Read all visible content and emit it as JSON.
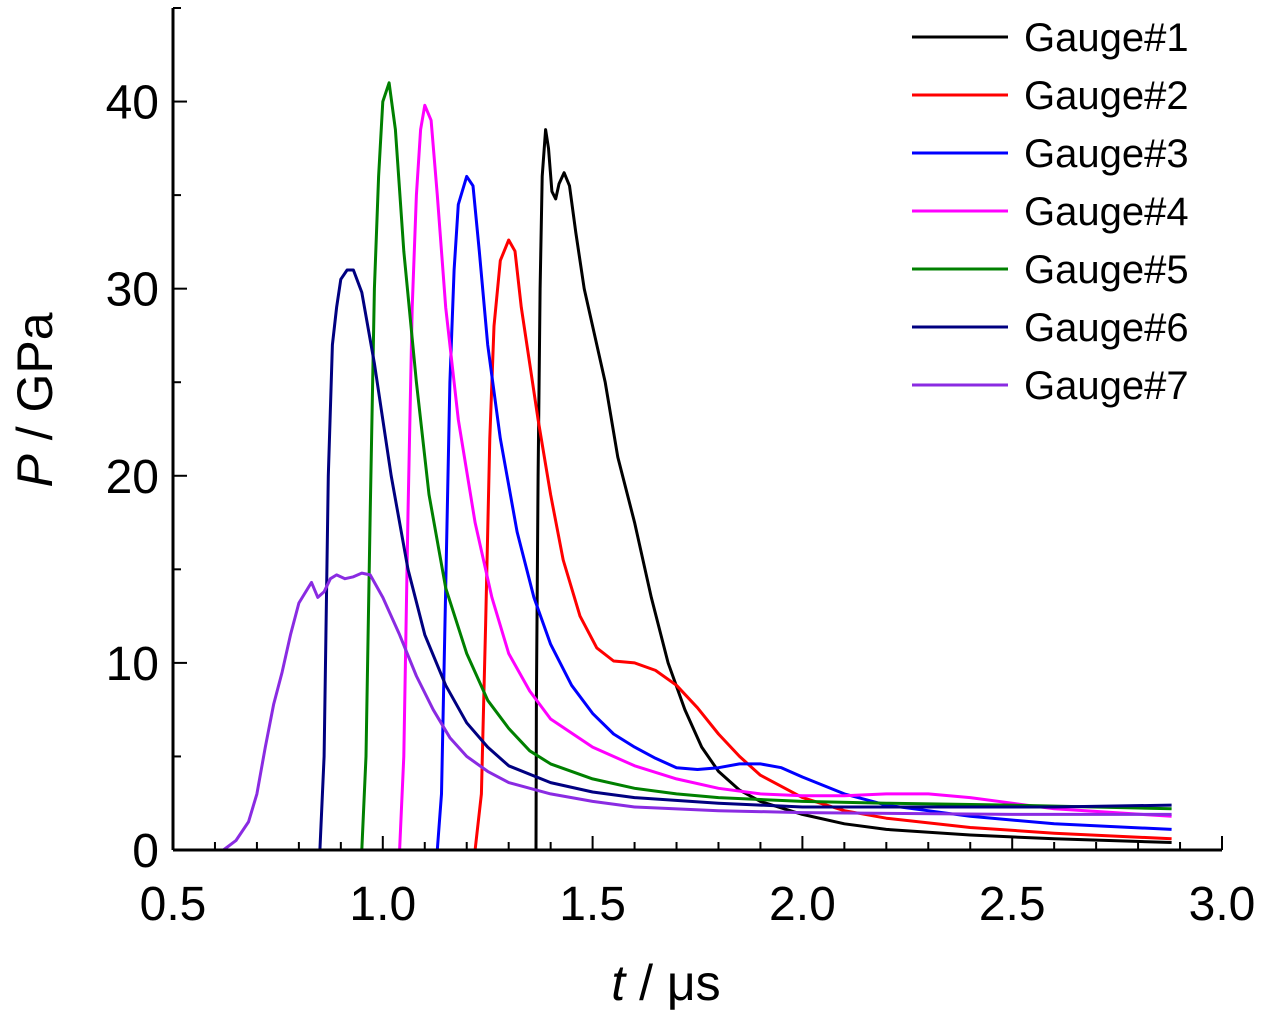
{
  "chart_data": {
    "type": "line",
    "xlabel_symbol": "t",
    "xlabel_unit": " / μs",
    "ylabel_symbol": "P",
    "ylabel_unit": " / GPa",
    "xlim": [
      0.5,
      3.0
    ],
    "ylim": [
      0,
      45
    ],
    "xticks": [
      0.5,
      1.0,
      1.5,
      2.0,
      2.5,
      3.0
    ],
    "xtick_labels": [
      "0.5",
      "1.0",
      "1.5",
      "2.0",
      "2.5",
      "3.0"
    ],
    "yticks": [
      0,
      10,
      20,
      30,
      40
    ],
    "ytick_labels": [
      "0",
      "10",
      "20",
      "30",
      "40"
    ],
    "grid": false,
    "legend_position": "top-right",
    "series": [
      {
        "name": "Gauge#1",
        "color": "#000000",
        "points": [
          [
            0.5,
            0
          ],
          [
            1.365,
            0
          ],
          [
            1.366,
            8
          ],
          [
            1.37,
            20
          ],
          [
            1.375,
            30
          ],
          [
            1.38,
            36
          ],
          [
            1.388,
            38.5
          ],
          [
            1.395,
            37.5
          ],
          [
            1.403,
            35.2
          ],
          [
            1.412,
            34.8
          ],
          [
            1.42,
            35.6
          ],
          [
            1.432,
            36.2
          ],
          [
            1.445,
            35.5
          ],
          [
            1.46,
            33
          ],
          [
            1.48,
            30
          ],
          [
            1.5,
            28
          ],
          [
            1.53,
            25
          ],
          [
            1.56,
            21
          ],
          [
            1.6,
            17.5
          ],
          [
            1.64,
            13.5
          ],
          [
            1.68,
            10
          ],
          [
            1.72,
            7.5
          ],
          [
            1.76,
            5.5
          ],
          [
            1.8,
            4.2
          ],
          [
            1.85,
            3.2
          ],
          [
            1.9,
            2.6
          ],
          [
            2.0,
            1.9
          ],
          [
            2.1,
            1.4
          ],
          [
            2.2,
            1.1
          ],
          [
            2.4,
            0.8
          ],
          [
            2.6,
            0.6
          ],
          [
            2.88,
            0.4
          ]
        ]
      },
      {
        "name": "Gauge#2",
        "color": "#ff0000",
        "points": [
          [
            0.5,
            0
          ],
          [
            1.22,
            0
          ],
          [
            1.235,
            3
          ],
          [
            1.245,
            12
          ],
          [
            1.255,
            22
          ],
          [
            1.265,
            28
          ],
          [
            1.28,
            31.5
          ],
          [
            1.3,
            32.6
          ],
          [
            1.315,
            32
          ],
          [
            1.33,
            29
          ],
          [
            1.35,
            26
          ],
          [
            1.37,
            23
          ],
          [
            1.4,
            19
          ],
          [
            1.43,
            15.5
          ],
          [
            1.47,
            12.5
          ],
          [
            1.51,
            10.8
          ],
          [
            1.55,
            10.1
          ],
          [
            1.6,
            10
          ],
          [
            1.65,
            9.6
          ],
          [
            1.7,
            8.8
          ],
          [
            1.75,
            7.6
          ],
          [
            1.8,
            6.2
          ],
          [
            1.85,
            5
          ],
          [
            1.9,
            4
          ],
          [
            2.0,
            2.8
          ],
          [
            2.1,
            2.1
          ],
          [
            2.2,
            1.7
          ],
          [
            2.4,
            1.2
          ],
          [
            2.6,
            0.9
          ],
          [
            2.88,
            0.6
          ]
        ]
      },
      {
        "name": "Gauge#3",
        "color": "#0000ff",
        "points": [
          [
            0.5,
            0
          ],
          [
            1.13,
            0
          ],
          [
            1.14,
            3
          ],
          [
            1.15,
            14
          ],
          [
            1.16,
            25
          ],
          [
            1.17,
            31
          ],
          [
            1.18,
            34.5
          ],
          [
            1.2,
            36
          ],
          [
            1.215,
            35.5
          ],
          [
            1.23,
            32
          ],
          [
            1.25,
            27
          ],
          [
            1.28,
            22
          ],
          [
            1.32,
            17
          ],
          [
            1.36,
            13.5
          ],
          [
            1.4,
            11
          ],
          [
            1.45,
            8.8
          ],
          [
            1.5,
            7.3
          ],
          [
            1.55,
            6.2
          ],
          [
            1.6,
            5.5
          ],
          [
            1.65,
            4.9
          ],
          [
            1.7,
            4.4
          ],
          [
            1.75,
            4.3
          ],
          [
            1.8,
            4.4
          ],
          [
            1.85,
            4.6
          ],
          [
            1.9,
            4.6
          ],
          [
            1.95,
            4.4
          ],
          [
            2.0,
            3.9
          ],
          [
            2.1,
            3.0
          ],
          [
            2.2,
            2.4
          ],
          [
            2.4,
            1.8
          ],
          [
            2.6,
            1.4
          ],
          [
            2.88,
            1.1
          ]
        ]
      },
      {
        "name": "Gauge#4",
        "color": "#ff00ff",
        "points": [
          [
            0.5,
            0
          ],
          [
            1.04,
            0
          ],
          [
            1.05,
            5
          ],
          [
            1.06,
            18
          ],
          [
            1.07,
            29
          ],
          [
            1.08,
            35
          ],
          [
            1.09,
            38.5
          ],
          [
            1.1,
            39.8
          ],
          [
            1.115,
            39
          ],
          [
            1.13,
            35
          ],
          [
            1.15,
            29
          ],
          [
            1.18,
            23
          ],
          [
            1.22,
            17.5
          ],
          [
            1.26,
            13.5
          ],
          [
            1.3,
            10.5
          ],
          [
            1.35,
            8.5
          ],
          [
            1.4,
            7
          ],
          [
            1.5,
            5.5
          ],
          [
            1.6,
            4.5
          ],
          [
            1.7,
            3.8
          ],
          [
            1.8,
            3.3
          ],
          [
            1.9,
            3.0
          ],
          [
            2.0,
            2.9
          ],
          [
            2.1,
            2.9
          ],
          [
            2.2,
            3.0
          ],
          [
            2.3,
            3.0
          ],
          [
            2.4,
            2.8
          ],
          [
            2.5,
            2.5
          ],
          [
            2.6,
            2.2
          ],
          [
            2.88,
            1.8
          ]
        ]
      },
      {
        "name": "Gauge#5",
        "color": "#008000",
        "points": [
          [
            0.5,
            0
          ],
          [
            0.95,
            0
          ],
          [
            0.96,
            5
          ],
          [
            0.97,
            18
          ],
          [
            0.98,
            30
          ],
          [
            0.99,
            36
          ],
          [
            1.0,
            40
          ],
          [
            1.015,
            41
          ],
          [
            1.03,
            38.5
          ],
          [
            1.05,
            32
          ],
          [
            1.08,
            25
          ],
          [
            1.11,
            19
          ],
          [
            1.15,
            14
          ],
          [
            1.2,
            10.5
          ],
          [
            1.25,
            8
          ],
          [
            1.3,
            6.5
          ],
          [
            1.35,
            5.3
          ],
          [
            1.4,
            4.6
          ],
          [
            1.5,
            3.8
          ],
          [
            1.6,
            3.3
          ],
          [
            1.7,
            3.0
          ],
          [
            1.8,
            2.8
          ],
          [
            2.0,
            2.6
          ],
          [
            2.2,
            2.5
          ],
          [
            2.5,
            2.4
          ],
          [
            2.88,
            2.2
          ]
        ]
      },
      {
        "name": "Gauge#6",
        "color": "#000080",
        "points": [
          [
            0.5,
            0
          ],
          [
            0.85,
            0
          ],
          [
            0.86,
            5
          ],
          [
            0.87,
            20
          ],
          [
            0.88,
            27
          ],
          [
            0.89,
            29
          ],
          [
            0.9,
            30.5
          ],
          [
            0.915,
            31
          ],
          [
            0.93,
            31
          ],
          [
            0.95,
            29.8
          ],
          [
            0.98,
            26
          ],
          [
            1.02,
            20
          ],
          [
            1.06,
            15
          ],
          [
            1.1,
            11.5
          ],
          [
            1.15,
            8.8
          ],
          [
            1.2,
            6.8
          ],
          [
            1.25,
            5.5
          ],
          [
            1.3,
            4.5
          ],
          [
            1.4,
            3.6
          ],
          [
            1.5,
            3.1
          ],
          [
            1.6,
            2.8
          ],
          [
            1.8,
            2.5
          ],
          [
            2.0,
            2.3
          ],
          [
            2.3,
            2.3
          ],
          [
            2.6,
            2.3
          ],
          [
            2.88,
            2.4
          ]
        ]
      },
      {
        "name": "Gauge#7",
        "color": "#8a2be2",
        "points": [
          [
            0.5,
            0
          ],
          [
            0.62,
            0
          ],
          [
            0.65,
            0.5
          ],
          [
            0.68,
            1.5
          ],
          [
            0.7,
            3
          ],
          [
            0.72,
            5.5
          ],
          [
            0.74,
            7.8
          ],
          [
            0.76,
            9.5
          ],
          [
            0.78,
            11.5
          ],
          [
            0.8,
            13.2
          ],
          [
            0.83,
            14.3
          ],
          [
            0.845,
            13.5
          ],
          [
            0.86,
            13.8
          ],
          [
            0.875,
            14.5
          ],
          [
            0.89,
            14.7
          ],
          [
            0.91,
            14.5
          ],
          [
            0.93,
            14.6
          ],
          [
            0.95,
            14.8
          ],
          [
            0.97,
            14.7
          ],
          [
            1.0,
            13.5
          ],
          [
            1.04,
            11.5
          ],
          [
            1.08,
            9.3
          ],
          [
            1.12,
            7.5
          ],
          [
            1.16,
            6
          ],
          [
            1.2,
            5
          ],
          [
            1.25,
            4.2
          ],
          [
            1.3,
            3.6
          ],
          [
            1.4,
            3
          ],
          [
            1.5,
            2.6
          ],
          [
            1.6,
            2.3
          ],
          [
            1.8,
            2.1
          ],
          [
            2.0,
            2
          ],
          [
            2.5,
            1.9
          ],
          [
            2.88,
            1.9
          ]
        ]
      }
    ]
  }
}
